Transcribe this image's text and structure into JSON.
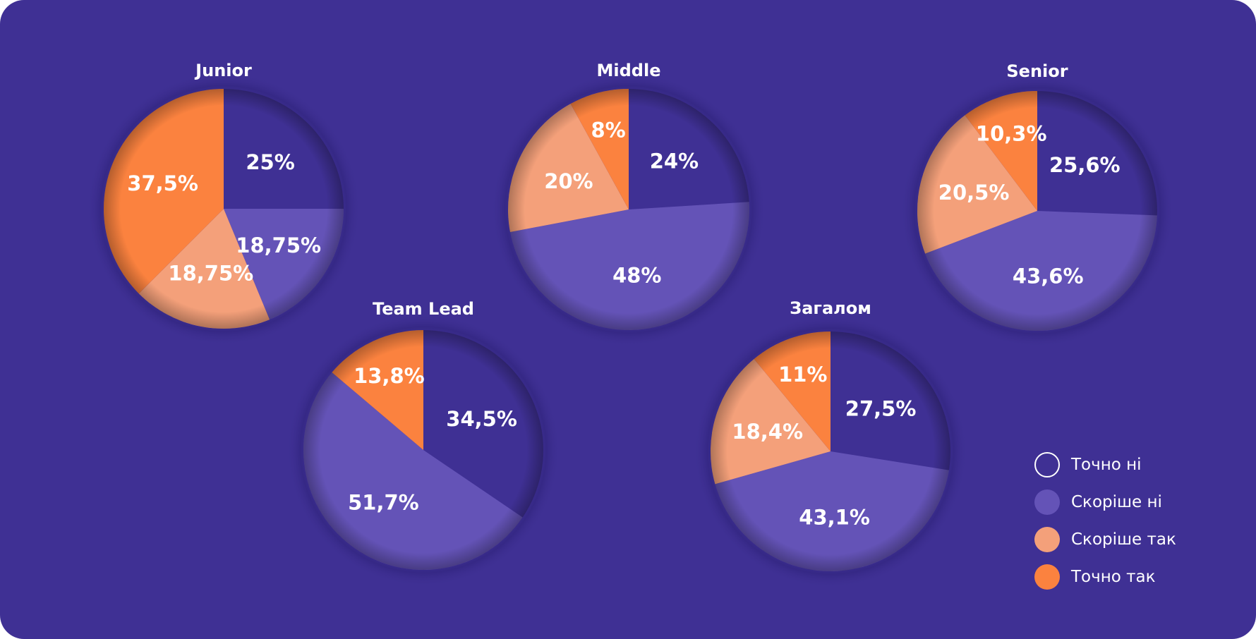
{
  "chart_data": [
    {
      "type": "pie",
      "title": "Junior",
      "slices": [
        {
          "category": "Точно ні",
          "value": 25,
          "label": "25%"
        },
        {
          "category": "Скоріше ні",
          "value": 18.75,
          "label": "18,75%"
        },
        {
          "category": "Скоріше так",
          "value": 18.75,
          "label": "18,75%"
        },
        {
          "category": "Точно так",
          "value": 37.5,
          "label": "37,5%"
        }
      ]
    },
    {
      "type": "pie",
      "title": "Middle",
      "slices": [
        {
          "category": "Точно ні",
          "value": 24,
          "label": "24%"
        },
        {
          "category": "Скоріше ні",
          "value": 48,
          "label": "48%"
        },
        {
          "category": "Скоріше так",
          "value": 20,
          "label": "20%"
        },
        {
          "category": "Точно так",
          "value": 8,
          "label": "8%"
        }
      ]
    },
    {
      "type": "pie",
      "title": "Senior",
      "slices": [
        {
          "category": "Точно ні",
          "value": 25.6,
          "label": "25,6%"
        },
        {
          "category": "Скоріше ні",
          "value": 43.6,
          "label": "43,6%"
        },
        {
          "category": "Скоріше так",
          "value": 20.5,
          "label": "20,5%"
        },
        {
          "category": "Точно так",
          "value": 10.3,
          "label": "10,3%"
        }
      ]
    },
    {
      "type": "pie",
      "title": "Team Lead",
      "slices": [
        {
          "category": "Точно ні",
          "value": 34.5,
          "label": "34,5%"
        },
        {
          "category": "Скоріше ні",
          "value": 51.7,
          "label": "51,7%"
        },
        {
          "category": "Точно так",
          "value": 13.8,
          "label": "13,8%"
        }
      ]
    },
    {
      "type": "pie",
      "title": "Загалом",
      "slices": [
        {
          "category": "Точно ні",
          "value": 27.5,
          "label": "27,5%"
        },
        {
          "category": "Скоріше ні",
          "value": 43.1,
          "label": "43,1%"
        },
        {
          "category": "Скоріше так",
          "value": 18.4,
          "label": "18,4%"
        },
        {
          "category": "Точно так",
          "value": 11,
          "label": "11%"
        }
      ]
    }
  ],
  "legend": {
    "placement": "bottom-right",
    "items": [
      {
        "label": "Точно ні",
        "color": "#3f3094",
        "outlined": true
      },
      {
        "label": "Скоріше ні",
        "color": "#6453b7",
        "outlined": false
      },
      {
        "label": "Скоріше так",
        "color": "#f4a07a",
        "outlined": false
      },
      {
        "label": "Точно так",
        "color": "#fb823f",
        "outlined": false
      }
    ]
  },
  "colors": {
    "background": "#3f3094",
    "Точно ні": "#3f3094",
    "Скоріше ні": "#6453b7",
    "Скоріше так": "#f4a07a",
    "Точно так": "#fb823f"
  }
}
